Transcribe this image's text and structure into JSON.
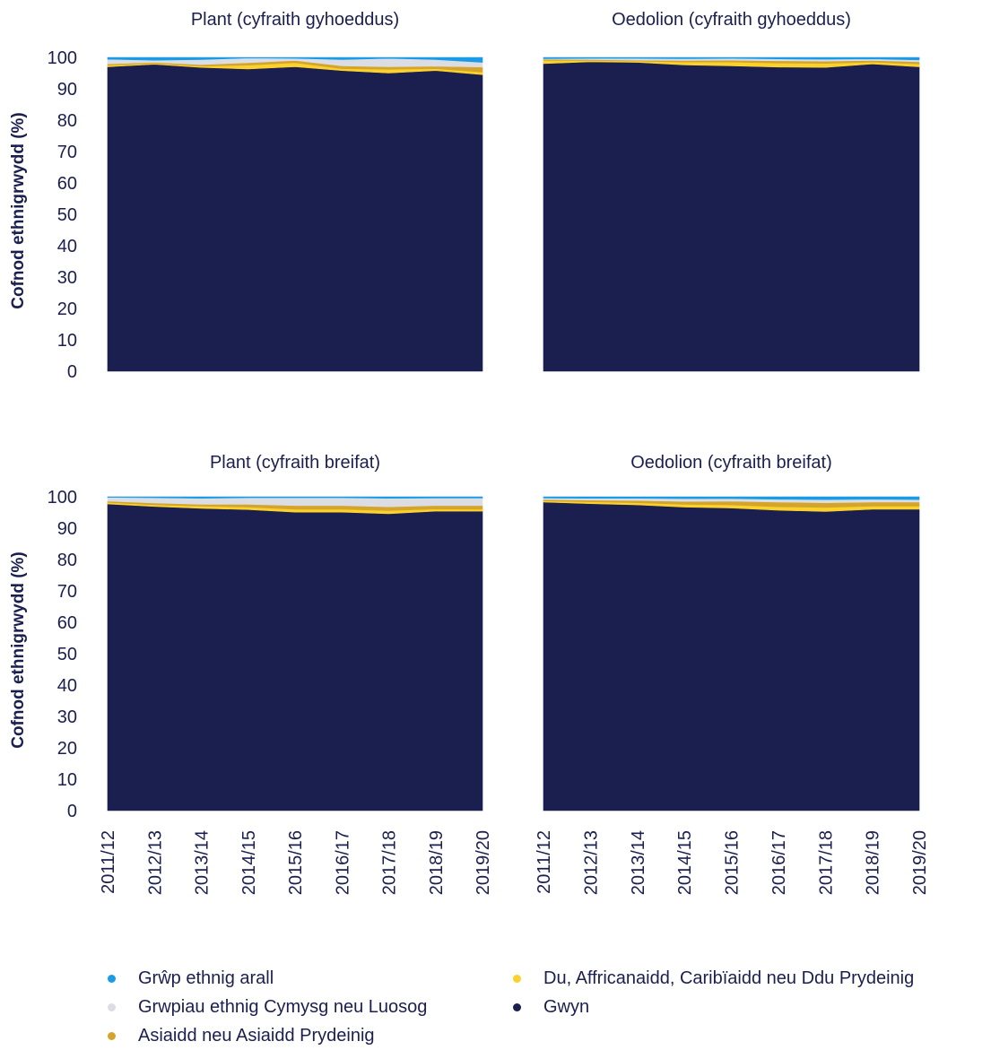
{
  "chart_data": [
    {
      "type": "area",
      "title": "Plant (cyfraith gyhoeddus)",
      "ylabel": "Cofnod ethnigrwydd (%)",
      "ylim": [
        0,
        100
      ],
      "yticks": [
        0,
        10,
        20,
        30,
        40,
        50,
        60,
        70,
        80,
        90,
        100
      ],
      "categories": [
        "2011/12",
        "2012/13",
        "2013/14",
        "2014/15",
        "2015/16",
        "2016/17",
        "2017/18",
        "2018/19",
        "2019/20"
      ],
      "series": [
        {
          "name": "Gwyn",
          "values": [
            97.0,
            97.8,
            96.8,
            96.3,
            97.0,
            95.8,
            95.0,
            95.8,
            94.5
          ]
        },
        {
          "name": "Du, Affricanaidd, Caribïaidd neu Ddu Prydeinig",
          "values": [
            0.5,
            0.3,
            0.4,
            1.2,
            1.3,
            0.6,
            1.2,
            0.6,
            0.8
          ]
        },
        {
          "name": "Asiaidd neu Asiaidd Prydeinig",
          "values": [
            0.4,
            0.3,
            0.5,
            0.8,
            0.7,
            0.9,
            0.8,
            0.8,
            1.6
          ]
        },
        {
          "name": "Grwpiau ethnig Cymysg neu Luosog",
          "values": [
            1.5,
            0.7,
            1.6,
            1.5,
            0.7,
            2.0,
            2.7,
            2.1,
            1.5
          ]
        },
        {
          "name": "Grŵp ethnig arall",
          "values": [
            0.6,
            0.9,
            0.7,
            0.2,
            0.3,
            0.7,
            0.3,
            0.7,
            1.6
          ]
        }
      ]
    },
    {
      "type": "area",
      "title": "Oedolion (cyfraith gyhoeddus)",
      "ylim": [
        0,
        100
      ],
      "categories": [
        "2011/12",
        "2012/13",
        "2013/14",
        "2014/15",
        "2015/16",
        "2016/17",
        "2017/18",
        "2018/19",
        "2019/20"
      ],
      "series": [
        {
          "name": "Gwyn",
          "values": [
            98.0,
            98.6,
            98.4,
            97.6,
            97.3,
            96.9,
            96.8,
            97.9,
            97.0
          ]
        },
        {
          "name": "Du, Affricanaidd, Caribïaidd neu Ddu Prydeinig",
          "values": [
            1.0,
            0.4,
            0.4,
            0.9,
            1.2,
            1.3,
            1.3,
            0.6,
            0.9
          ]
        },
        {
          "name": "Asiaidd neu Asiaidd Prydeinig",
          "values": [
            0.4,
            0.3,
            0.3,
            0.5,
            0.6,
            0.7,
            0.7,
            0.5,
            0.7
          ]
        },
        {
          "name": "Grwpiau ethnig Cymysg neu Luosog",
          "values": [
            0.2,
            0.4,
            0.6,
            0.6,
            0.6,
            0.6,
            0.6,
            0.5,
            0.6
          ]
        },
        {
          "name": "Grŵp ethnig arall",
          "values": [
            0.4,
            0.3,
            0.3,
            0.4,
            0.3,
            0.5,
            0.6,
            0.5,
            0.8
          ]
        }
      ]
    },
    {
      "type": "area",
      "title": "Plant (cyfraith breifat)",
      "ylabel": "Cofnod ethnigrwydd (%)",
      "ylim": [
        0,
        100
      ],
      "yticks": [
        0,
        10,
        20,
        30,
        40,
        50,
        60,
        70,
        80,
        90,
        100
      ],
      "categories": [
        "2011/12",
        "2012/13",
        "2013/14",
        "2014/15",
        "2015/16",
        "2016/17",
        "2017/18",
        "2018/19",
        "2019/20"
      ],
      "series": [
        {
          "name": "Gwyn",
          "values": [
            97.7,
            96.9,
            96.3,
            95.9,
            95.1,
            95.1,
            94.6,
            95.4,
            95.4
          ]
        },
        {
          "name": "Du, Affricanaidd, Caribïaidd neu Ddu Prydeinig",
          "values": [
            0.5,
            0.5,
            0.7,
            0.8,
            0.9,
            0.9,
            1.0,
            0.7,
            0.6
          ]
        },
        {
          "name": "Asiaidd neu Asiaidd Prydeinig",
          "values": [
            0.4,
            0.6,
            0.6,
            0.9,
            1.2,
            1.2,
            1.2,
            1.1,
            1.2
          ]
        },
        {
          "name": "Grwpiau ethnig Cymysg neu Luosog",
          "values": [
            1.2,
            1.7,
            1.9,
            2.1,
            2.5,
            2.5,
            2.7,
            2.4,
            2.4
          ]
        },
        {
          "name": "Grŵp ethnig arall",
          "values": [
            0.2,
            0.3,
            0.5,
            0.3,
            0.3,
            0.3,
            0.5,
            0.4,
            0.4
          ]
        }
      ]
    },
    {
      "type": "area",
      "title": "Oedolion (cyfraith breifat)",
      "ylim": [
        0,
        100
      ],
      "categories": [
        "2011/12",
        "2012/13",
        "2013/14",
        "2014/15",
        "2015/16",
        "2016/17",
        "2017/18",
        "2018/19",
        "2019/20"
      ],
      "series": [
        {
          "name": "Gwyn",
          "values": [
            98.3,
            97.8,
            97.4,
            96.7,
            96.4,
            95.7,
            95.3,
            96.0,
            96.0
          ]
        },
        {
          "name": "Du, Affricanaidd, Caribïaidd neu Ddu Prydeinig",
          "values": [
            0.4,
            0.6,
            0.7,
            0.9,
            1.0,
            1.1,
            1.3,
            1.0,
            1.0
          ]
        },
        {
          "name": "Asiaidd neu Asiaidd Prydeinig",
          "values": [
            0.4,
            0.5,
            0.7,
            0.9,
            1.2,
            1.5,
            1.5,
            1.3,
            1.3
          ]
        },
        {
          "name": "Grwpiau ethnig Cymysg neu Luosog",
          "values": [
            0.5,
            0.6,
            0.7,
            0.9,
            0.8,
            0.9,
            1.0,
            0.9,
            0.8
          ]
        },
        {
          "name": "Grŵp ethnig arall",
          "values": [
            0.4,
            0.5,
            0.5,
            0.6,
            0.6,
            0.8,
            0.9,
            0.8,
            0.9
          ]
        }
      ]
    }
  ],
  "legend": [
    {
      "name": "Grŵp ethnig arall",
      "color": "#1a9be6"
    },
    {
      "name": "Grwpiau ethnig Cymysg neu Luosog",
      "color": "#dcdde3"
    },
    {
      "name": "Asiaidd neu Asiaidd Prydeinig",
      "color": "#d4a52a"
    },
    {
      "name": "Du, Affricanaidd, Caribïaidd neu Ddu Prydeinig",
      "color": "#fbd12d"
    },
    {
      "name": "Gwyn",
      "color": "#1a1f4f"
    }
  ],
  "colors": {
    "Gwyn": "#1a1f4f",
    "Du, Affricanaidd, Caribïaidd neu Ddu Prydeinig": "#fbd12d",
    "Asiaidd neu Asiaidd Prydeinig": "#d4a52a",
    "Grwpiau ethnig Cymysg neu Luosog": "#dcdde3",
    "Grŵp ethnig arall": "#1a9be6"
  }
}
